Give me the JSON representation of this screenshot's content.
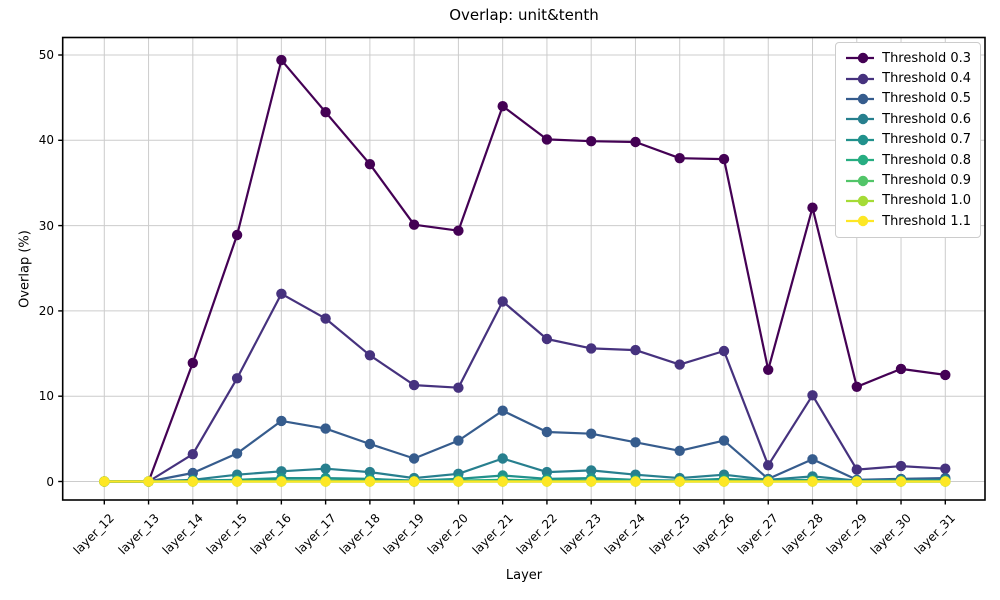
{
  "figure": {
    "title": "Overlap: unit&tenth"
  },
  "chart_data": {
    "type": "line",
    "title": "Overlap: unit&tenth",
    "xlabel": "Layer",
    "ylabel": "Overlap (%)",
    "grid": true,
    "legend_position": "upper right",
    "ylim": [
      -2.2,
      52.1
    ],
    "yticks": [
      0,
      10,
      20,
      30,
      40,
      50
    ],
    "categories": [
      "layer_12",
      "layer_13",
      "layer_14",
      "layer_15",
      "layer_16",
      "layer_17",
      "layer_18",
      "layer_19",
      "layer_20",
      "layer_21",
      "layer_22",
      "layer_23",
      "layer_24",
      "layer_25",
      "layer_26",
      "layer_27",
      "layer_28",
      "layer_29",
      "layer_30",
      "layer_31"
    ],
    "series": [
      {
        "name": "Threshold 0.3",
        "color": "#440154",
        "values": [
          0.0,
          0.0,
          13.9,
          28.9,
          49.4,
          43.3,
          37.2,
          30.1,
          29.4,
          44.0,
          40.1,
          39.9,
          39.8,
          37.9,
          37.8,
          13.1,
          32.1,
          11.1,
          13.2,
          12.5
        ]
      },
      {
        "name": "Threshold 0.4",
        "color": "#46327e",
        "values": [
          0.0,
          0.0,
          3.2,
          12.1,
          22.0,
          19.1,
          14.8,
          11.3,
          11.0,
          21.1,
          16.7,
          15.6,
          15.4,
          13.7,
          15.3,
          1.9,
          10.1,
          1.4,
          1.8,
          1.5
        ]
      },
      {
        "name": "Threshold 0.5",
        "color": "#365c8d",
        "values": [
          0.0,
          0.0,
          1.0,
          3.3,
          7.1,
          6.2,
          4.4,
          2.7,
          4.8,
          8.3,
          5.8,
          5.6,
          4.6,
          3.6,
          4.8,
          0.3,
          2.6,
          0.2,
          0.3,
          0.4
        ]
      },
      {
        "name": "Threshold 0.6",
        "color": "#277f8e",
        "values": [
          0.0,
          0.0,
          0.2,
          0.8,
          1.2,
          1.5,
          1.1,
          0.4,
          0.9,
          2.7,
          1.1,
          1.3,
          0.8,
          0.4,
          0.8,
          0.2,
          0.6,
          0.1,
          0.2,
          0.2
        ]
      },
      {
        "name": "Threshold 0.7",
        "color": "#21918c",
        "values": [
          0.0,
          0.0,
          0.1,
          0.2,
          0.4,
          0.4,
          0.3,
          0.1,
          0.3,
          0.7,
          0.3,
          0.4,
          0.2,
          0.1,
          0.3,
          0.1,
          0.2,
          0.0,
          0.1,
          0.1
        ]
      },
      {
        "name": "Threshold 0.8",
        "color": "#27ad81",
        "values": [
          0.0,
          0.0,
          0.0,
          0.1,
          0.1,
          0.1,
          0.1,
          0.0,
          0.1,
          0.2,
          0.1,
          0.1,
          0.1,
          0.0,
          0.1,
          0.0,
          0.1,
          0.0,
          0.0,
          0.0
        ]
      },
      {
        "name": "Threshold 0.9",
        "color": "#52c569",
        "values": [
          0.0,
          0.0,
          0.0,
          0.0,
          0.0,
          0.0,
          0.0,
          0.0,
          0.0,
          0.0,
          0.0,
          0.0,
          0.0,
          0.0,
          0.0,
          0.0,
          0.0,
          0.0,
          0.0,
          0.0
        ]
      },
      {
        "name": "Threshold 1.0",
        "color": "#a5db36",
        "values": [
          0.0,
          0.0,
          0.0,
          0.0,
          0.0,
          0.0,
          0.0,
          0.0,
          0.0,
          0.0,
          0.0,
          0.0,
          0.0,
          0.0,
          0.0,
          0.0,
          0.0,
          0.0,
          0.0,
          0.0
        ]
      },
      {
        "name": "Threshold 1.1",
        "color": "#fde725",
        "values": [
          0.0,
          0.0,
          0.0,
          0.0,
          0.0,
          0.0,
          0.0,
          0.0,
          0.0,
          0.0,
          0.0,
          0.0,
          0.0,
          0.0,
          0.0,
          0.0,
          0.0,
          0.0,
          0.0,
          0.0
        ]
      }
    ],
    "colors": {
      "grid": "#cccccc",
      "spine": "#000000",
      "background": "#ffffff"
    }
  }
}
